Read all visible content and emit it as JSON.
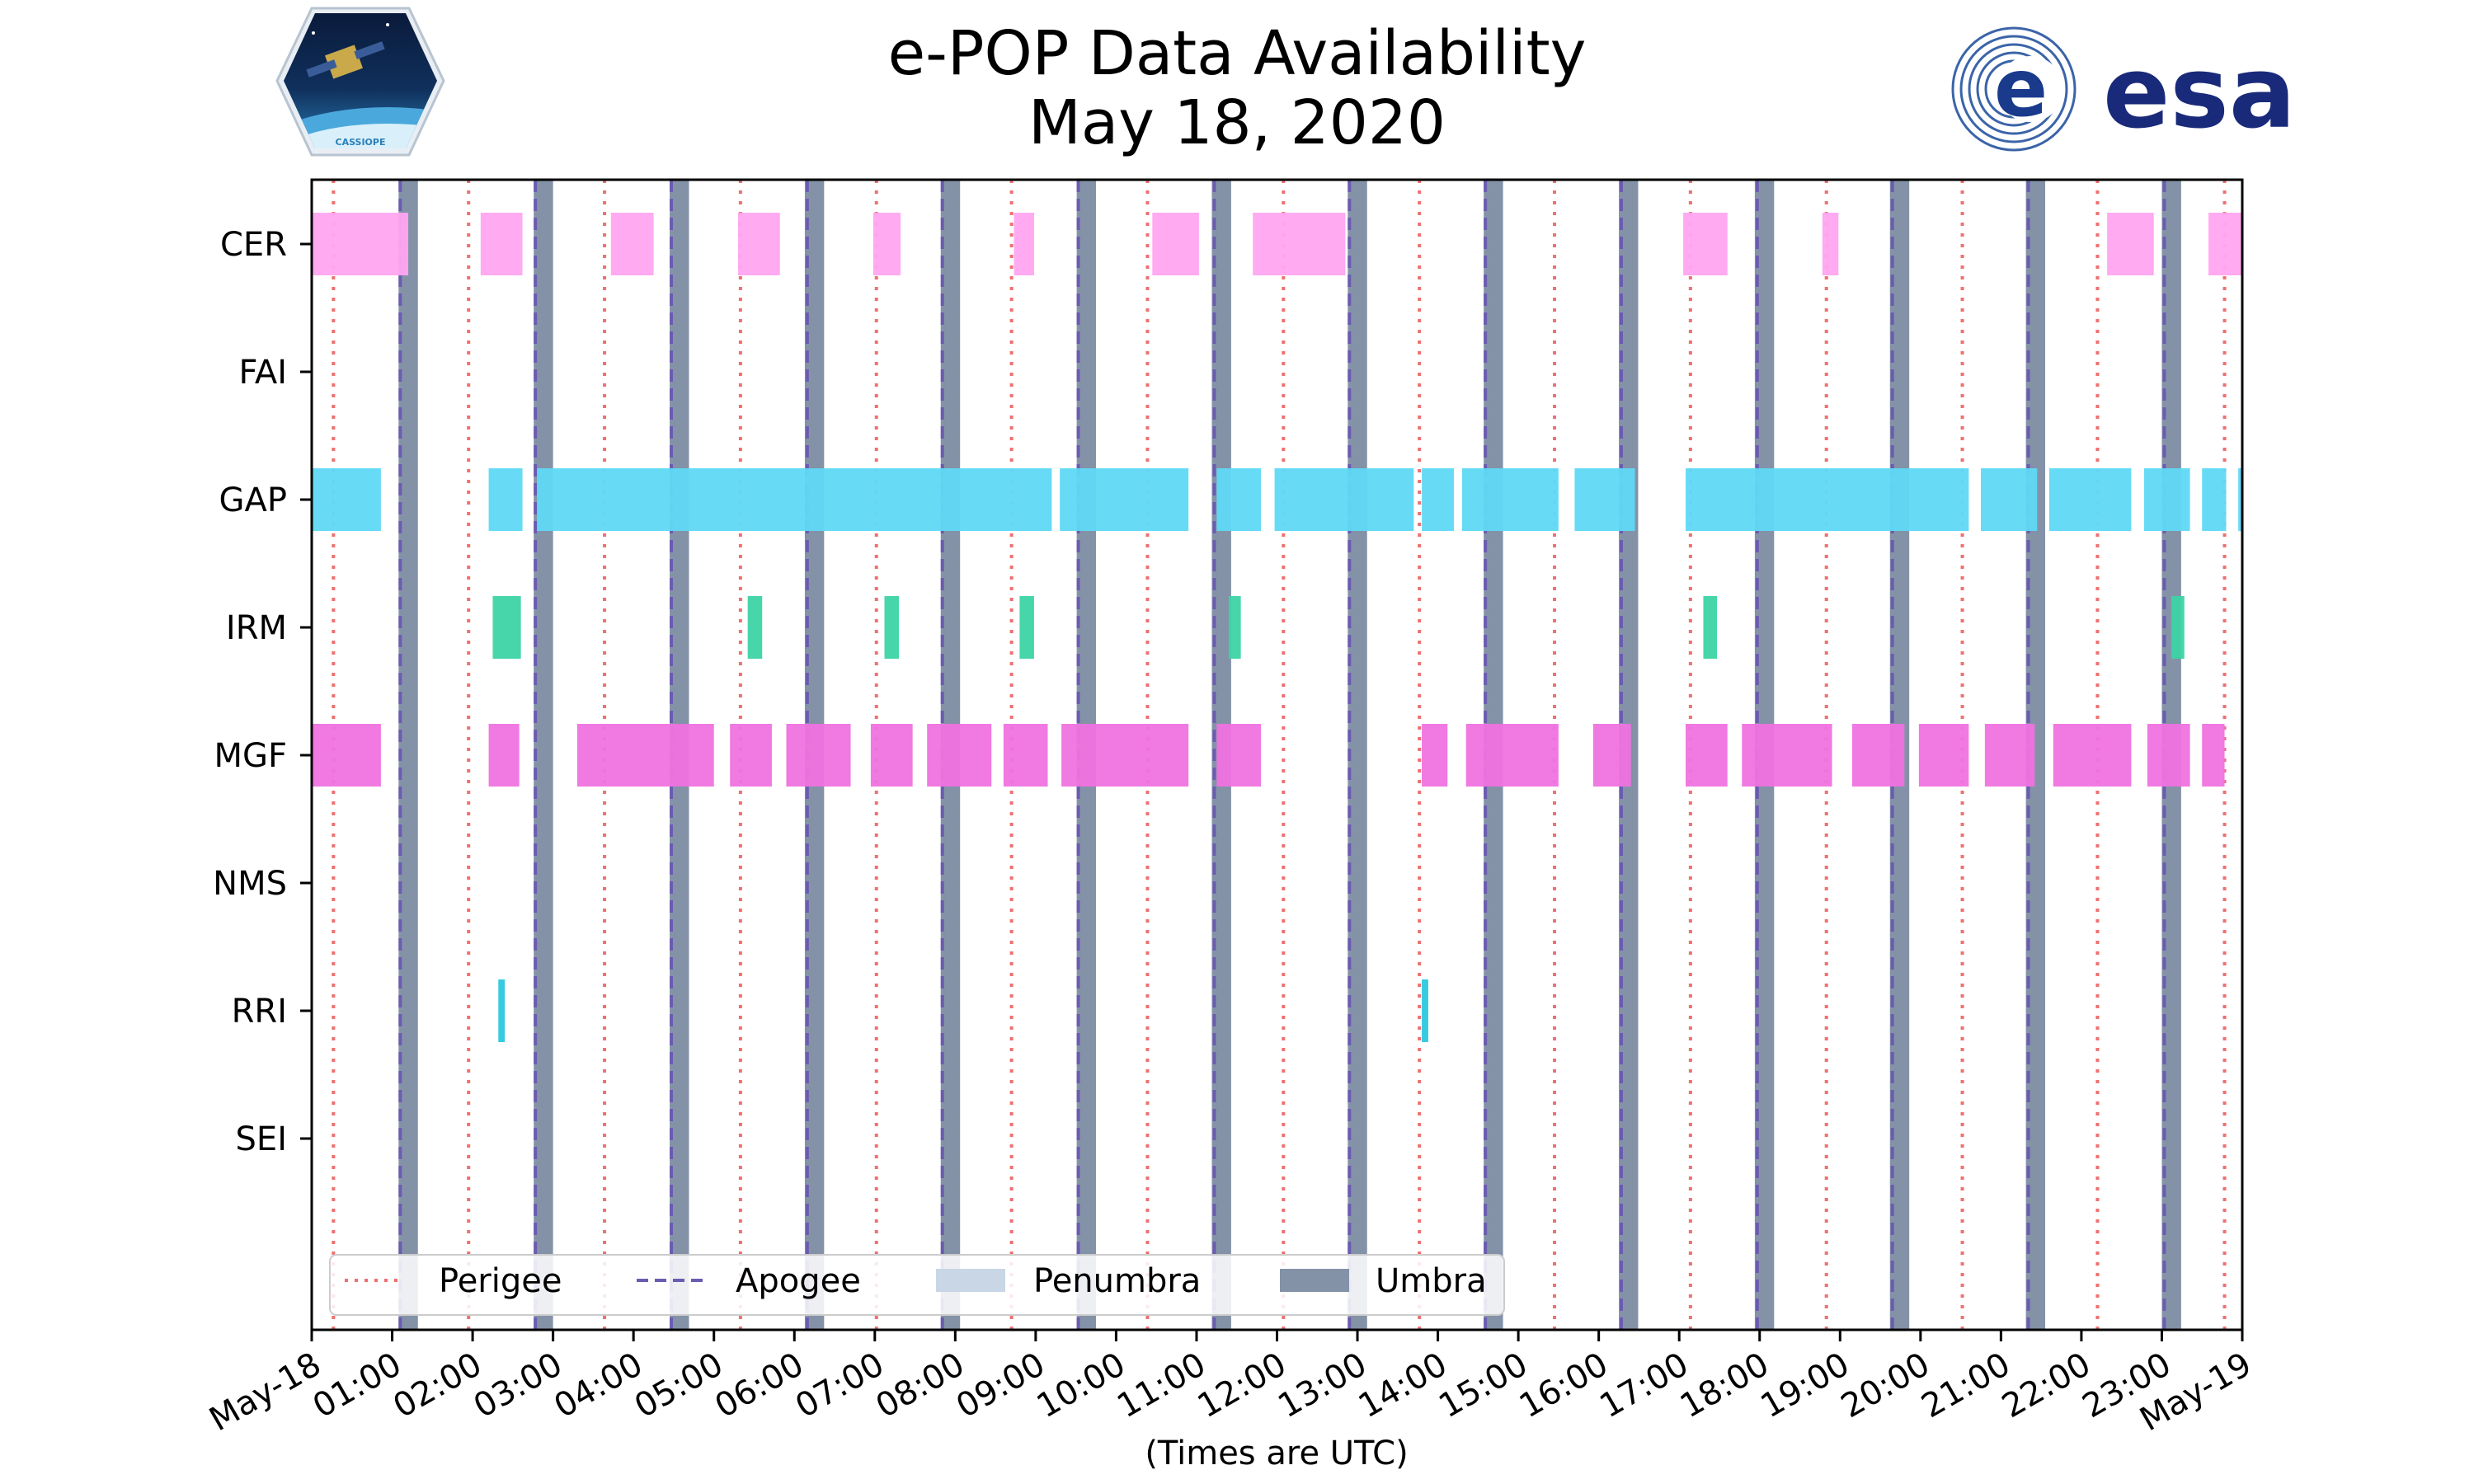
{
  "title_line1": "e-POP Data Availability",
  "title_line2": "May 18, 2020",
  "logos": {
    "left": "CASSIOPE",
    "right": "esa"
  },
  "colors": {
    "CER": "#ffa5f0",
    "GAP": "#5fd9f5",
    "IRM": "#3cd4a4",
    "MGF": "#ef72e0",
    "RRI": "#2cc8e0",
    "perigee": "#f07070",
    "apogee": "#6a5cb0",
    "penumbra": "#c8d6e6",
    "umbra": "#8492a8"
  },
  "chart_data": {
    "type": "timeline",
    "title": "e-POP Data Availability May 18, 2020",
    "xlabel": "(Times are UTC)",
    "ylabel": "",
    "xlim_hours": [
      0,
      24
    ],
    "x_tick_labels": [
      "May-18",
      "01:00",
      "02:00",
      "03:00",
      "04:00",
      "05:00",
      "06:00",
      "07:00",
      "08:00",
      "09:00",
      "10:00",
      "11:00",
      "12:00",
      "13:00",
      "14:00",
      "15:00",
      "16:00",
      "17:00",
      "18:00",
      "19:00",
      "20:00",
      "21:00",
      "22:00",
      "23:00",
      "May-19"
    ],
    "instruments": [
      "CER",
      "FAI",
      "GAP",
      "IRM",
      "MGF",
      "NMS",
      "RRI",
      "SEI"
    ],
    "intervals_hours": {
      "CER": [
        [
          0.0,
          1.2
        ],
        [
          2.1,
          2.62
        ],
        [
          3.72,
          4.25
        ],
        [
          5.3,
          5.82
        ],
        [
          6.98,
          7.32
        ],
        [
          8.73,
          8.98
        ],
        [
          10.45,
          11.03
        ],
        [
          11.7,
          12.85
        ],
        [
          17.05,
          17.6
        ],
        [
          18.78,
          18.98
        ],
        [
          22.32,
          22.9
        ],
        [
          23.58,
          24.0
        ]
      ],
      "FAI": [],
      "GAP": [
        [
          0.0,
          0.86
        ],
        [
          2.2,
          2.62
        ],
        [
          2.8,
          9.2
        ],
        [
          9.3,
          10.9
        ],
        [
          11.25,
          11.8
        ],
        [
          11.97,
          13.7
        ],
        [
          13.8,
          14.2
        ],
        [
          14.3,
          15.5
        ],
        [
          15.7,
          16.45
        ],
        [
          17.08,
          20.6
        ],
        [
          20.75,
          21.45
        ],
        [
          21.6,
          22.62
        ],
        [
          22.78,
          23.35
        ],
        [
          23.5,
          23.8
        ],
        [
          23.95,
          24.0
        ]
      ],
      "FAI_note": [],
      "IRM": [
        [
          2.25,
          2.6
        ],
        [
          5.42,
          5.6
        ],
        [
          7.12,
          7.3
        ],
        [
          8.8,
          8.98
        ],
        [
          11.4,
          11.55
        ],
        [
          17.3,
          17.47
        ],
        [
          23.12,
          23.28
        ]
      ],
      "MGF": [
        [
          0.0,
          0.86
        ],
        [
          2.2,
          2.58
        ],
        [
          3.3,
          5.0
        ],
        [
          5.2,
          5.72
        ],
        [
          5.9,
          6.7
        ],
        [
          6.95,
          7.47
        ],
        [
          7.65,
          8.45
        ],
        [
          8.6,
          9.15
        ],
        [
          9.32,
          10.9
        ],
        [
          11.25,
          11.8
        ],
        [
          13.8,
          14.12
        ],
        [
          14.35,
          15.5
        ],
        [
          15.93,
          16.4
        ],
        [
          17.08,
          17.6
        ],
        [
          17.78,
          18.9
        ],
        [
          19.15,
          19.8
        ],
        [
          19.98,
          20.6
        ],
        [
          20.8,
          21.42
        ],
        [
          21.65,
          22.62
        ],
        [
          22.82,
          23.35
        ],
        [
          23.5,
          23.78
        ]
      ],
      "NMS": [],
      "RRI": [
        [
          2.32,
          2.4
        ],
        [
          13.8,
          13.88
        ]
      ],
      "SEI": []
    },
    "perigee_hours": [
      0.27,
      1.95,
      3.64,
      5.33,
      7.02,
      8.7,
      10.39,
      12.08,
      13.77,
      15.45,
      17.14,
      18.83,
      20.52,
      22.2,
      23.78
    ],
    "apogee_hours": [
      1.1,
      2.78,
      4.47,
      6.16,
      7.84,
      9.53,
      11.22,
      12.9,
      14.59,
      16.28,
      17.97,
      19.65,
      21.34,
      23.03
    ],
    "umbra_hours": [
      [
        1.08,
        1.32
      ],
      [
        2.76,
        3.0
      ],
      [
        4.45,
        4.69
      ],
      [
        6.13,
        6.37
      ],
      [
        7.82,
        8.06
      ],
      [
        9.51,
        9.75
      ],
      [
        11.19,
        11.43
      ],
      [
        12.88,
        13.12
      ],
      [
        14.57,
        14.81
      ],
      [
        16.25,
        16.49
      ],
      [
        17.94,
        18.18
      ],
      [
        19.62,
        19.86
      ],
      [
        21.31,
        21.55
      ],
      [
        23.0,
        23.24
      ]
    ],
    "legend": {
      "location": "lower-left",
      "entries": [
        "Perigee",
        "Apogee",
        "Penumbra",
        "Umbra"
      ]
    }
  }
}
